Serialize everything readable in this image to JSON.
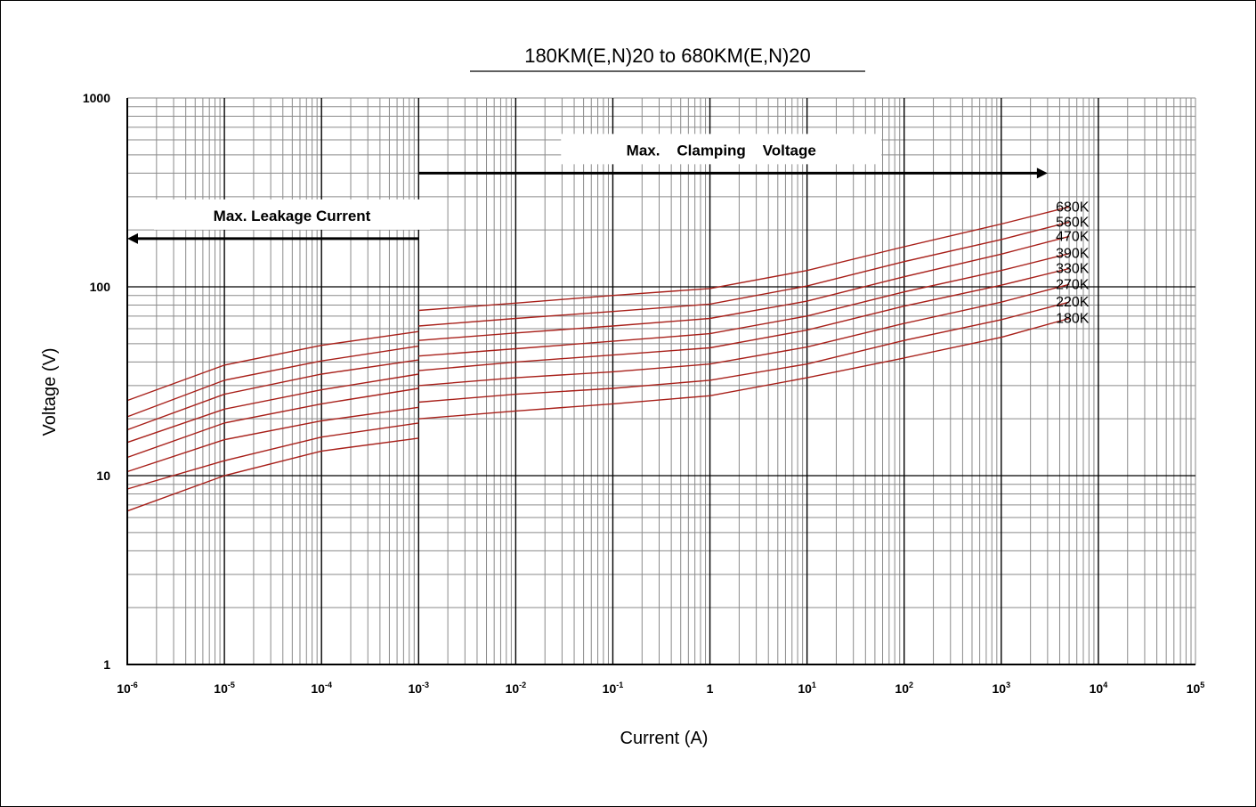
{
  "chart_data": {
    "type": "line",
    "title": "180KM(E,N)20  to 680KM(E,N)20",
    "xlabel": "Current (A)",
    "ylabel": "Voltage (V)",
    "x_scale": "log",
    "y_scale": "log",
    "xlim": [
      1e-06,
      100000
    ],
    "ylim": [
      1,
      1000
    ],
    "grid": true,
    "x_ticks": [
      {
        "value": 1e-06,
        "base": "10",
        "exp": "-6"
      },
      {
        "value": 1e-05,
        "base": "10",
        "exp": "-5"
      },
      {
        "value": 0.0001,
        "base": "10",
        "exp": "-4"
      },
      {
        "value": 0.001,
        "base": "10",
        "exp": "-3"
      },
      {
        "value": 0.01,
        "base": "10",
        "exp": "-2"
      },
      {
        "value": 0.1,
        "base": "10",
        "exp": "-1"
      },
      {
        "value": 1,
        "base": "1",
        "exp": ""
      },
      {
        "value": 10,
        "base": "10",
        "exp": "1"
      },
      {
        "value": 100,
        "base": "10",
        "exp": "2"
      },
      {
        "value": 1000,
        "base": "10",
        "exp": "3"
      },
      {
        "value": 10000,
        "base": "10",
        "exp": "4"
      },
      {
        "value": 100000,
        "base": "10",
        "exp": "5"
      }
    ],
    "y_ticks": [
      {
        "value": 1,
        "label": "1"
      },
      {
        "value": 10,
        "label": "10"
      },
      {
        "value": 100,
        "label": "100"
      },
      {
        "value": 1000,
        "label": "1000"
      }
    ],
    "annotations": [
      {
        "text": "Max. Leakage Current",
        "x_from": 0.001,
        "x_to": 1e-06,
        "y": 180
      },
      {
        "text": "Max.    Clamping    Voltage",
        "x_from": 0.001,
        "x_to": 3000,
        "y": 400
      }
    ],
    "series_color": "#a8201a",
    "series": [
      {
        "name": "680K",
        "leakage": {
          "x": [
            1e-06,
            1e-05,
            0.0001,
            0.001
          ],
          "y": [
            25,
            38.5,
            49,
            58
          ]
        },
        "clamping": {
          "x": [
            0.001,
            0.01,
            0.1,
            1,
            10,
            100,
            1000,
            5000
          ],
          "y": [
            75,
            82,
            90,
            98,
            122,
            163,
            215,
            265
          ]
        }
      },
      {
        "name": "560K",
        "leakage": {
          "x": [
            1e-06,
            1e-05,
            0.0001,
            0.001
          ],
          "y": [
            20.5,
            32,
            40.5,
            48.5
          ]
        },
        "clamping": {
          "x": [
            0.001,
            0.01,
            0.1,
            1,
            10,
            100,
            1000,
            5000
          ],
          "y": [
            62,
            68,
            74,
            81,
            101,
            136,
            178,
            220
          ]
        }
      },
      {
        "name": "470K",
        "leakage": {
          "x": [
            1e-06,
            1e-05,
            0.0001,
            0.001
          ],
          "y": [
            17.5,
            27,
            34.5,
            41
          ]
        },
        "clamping": {
          "x": [
            0.001,
            0.01,
            0.1,
            1,
            10,
            100,
            1000,
            5000
          ],
          "y": [
            52,
            57,
            62,
            68,
            84,
            113,
            149,
            185
          ]
        }
      },
      {
        "name": "390K",
        "leakage": {
          "x": [
            1e-06,
            1e-05,
            0.0001,
            0.001
          ],
          "y": [
            15,
            22.5,
            28.5,
            34.5
          ]
        },
        "clamping": {
          "x": [
            0.001,
            0.01,
            0.1,
            1,
            10,
            100,
            1000,
            5000
          ],
          "y": [
            43,
            47,
            51.5,
            56.5,
            70,
            94,
            122,
            150
          ]
        }
      },
      {
        "name": "330K",
        "leakage": {
          "x": [
            1e-06,
            1e-05,
            0.0001,
            0.001
          ],
          "y": [
            12.5,
            19,
            24,
            29
          ]
        },
        "clamping": {
          "x": [
            0.001,
            0.01,
            0.1,
            1,
            10,
            100,
            1000,
            5000
          ],
          "y": [
            36,
            40,
            43.5,
            47.5,
            59,
            79,
            102,
            125
          ]
        }
      },
      {
        "name": "270K",
        "leakage": {
          "x": [
            1e-06,
            1e-05,
            0.0001,
            0.001
          ],
          "y": [
            10.5,
            15.5,
            19.5,
            23
          ]
        },
        "clamping": {
          "x": [
            0.001,
            0.01,
            0.1,
            1,
            10,
            100,
            1000,
            5000
          ],
          "y": [
            30,
            33,
            35.5,
            39,
            48,
            64,
            83,
            103
          ]
        }
      },
      {
        "name": "220K",
        "leakage": {
          "x": [
            1e-06,
            1e-05,
            0.0001,
            0.001
          ],
          "y": [
            8.5,
            12,
            16,
            19
          ]
        },
        "clamping": {
          "x": [
            0.001,
            0.01,
            0.1,
            1,
            10,
            100,
            1000,
            5000
          ],
          "y": [
            24.5,
            27,
            29,
            32,
            39,
            52,
            67,
            83
          ]
        }
      },
      {
        "name": "180K",
        "leakage": {
          "x": [
            1e-06,
            1e-05,
            0.0001,
            0.001
          ],
          "y": [
            6.5,
            10,
            13.5,
            15.8
          ]
        },
        "clamping": {
          "x": [
            0.001,
            0.01,
            0.1,
            1,
            10,
            100,
            1000,
            5000
          ],
          "y": [
            20,
            22,
            24,
            26.5,
            33,
            42,
            54,
            68
          ]
        }
      }
    ]
  }
}
